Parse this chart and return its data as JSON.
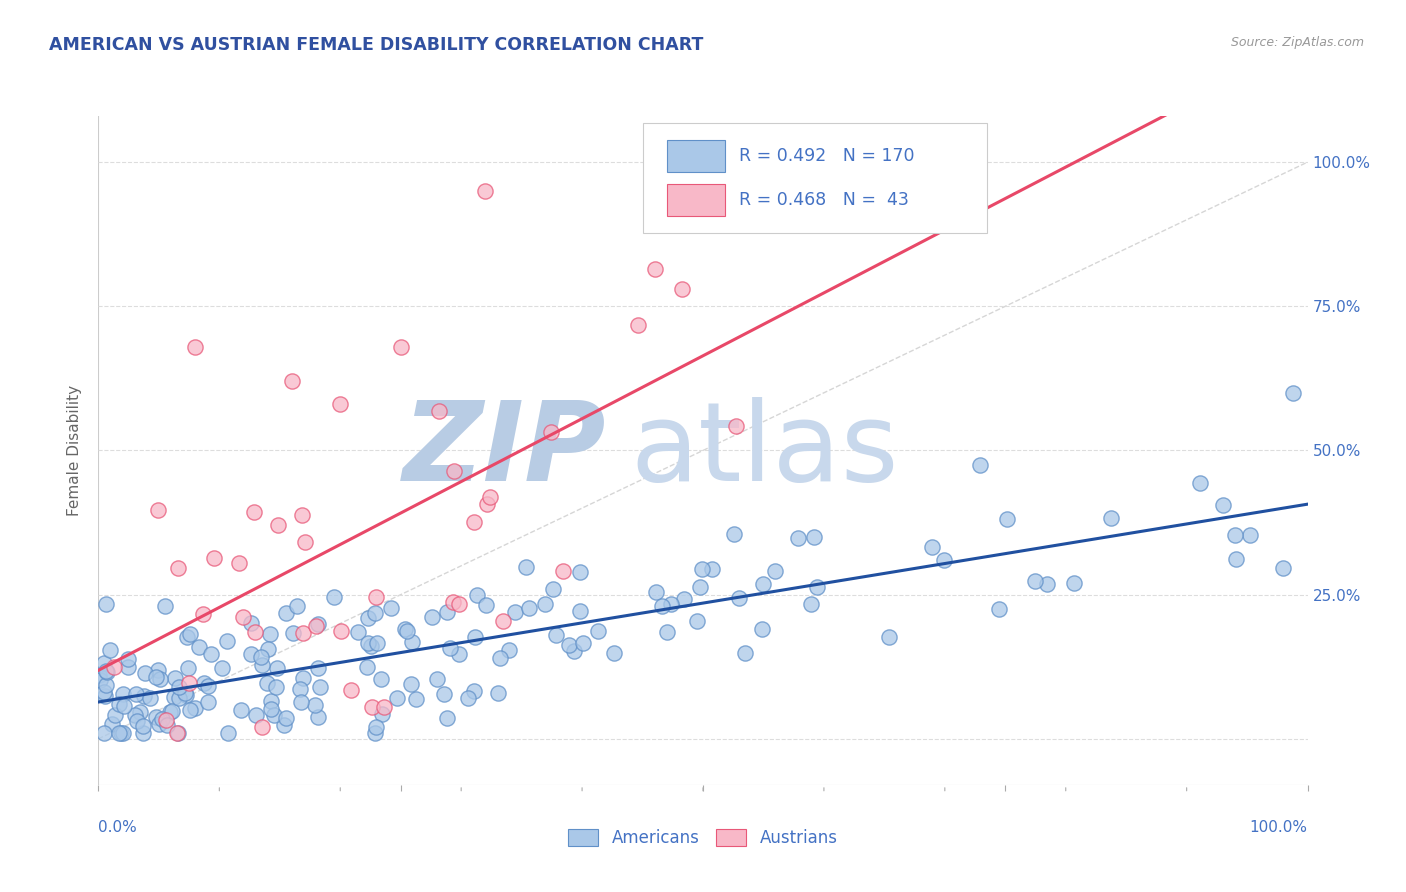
{
  "title": "AMERICAN VS AUSTRIAN FEMALE DISABILITY CORRELATION CHART",
  "source_text": "Source: ZipAtlas.com",
  "ylabel": "Female Disability",
  "title_color": "#3050a0",
  "title_fontsize": 12.5,
  "axis_label_color": "#666666",
  "tick_label_color": "#4472c4",
  "american_color": "#aac8e8",
  "austrian_color": "#f8b8c8",
  "american_edge_color": "#6090c8",
  "austrian_edge_color": "#e85878",
  "american_line_color": "#2050a0",
  "austrian_line_color": "#e84868",
  "diagonal_color": "#cccccc",
  "r_american": 0.492,
  "n_american": 170,
  "r_austrian": 0.468,
  "n_austrian": 43,
  "legend_text_color": "#4472c4",
  "watermark_zip_color": "#b8cce4",
  "watermark_atlas_color": "#c8d8ec",
  "background_color": "#ffffff",
  "grid_color": "#dddddd",
  "tick_right_labels": [
    "",
    "25.0%",
    "50.0%",
    "75.0%",
    "100.0%"
  ],
  "ytick_positions": [
    0.0,
    0.25,
    0.5,
    0.75,
    1.0
  ],
  "xlim": [
    0.0,
    1.0
  ],
  "ylim": [
    -0.08,
    1.08
  ]
}
